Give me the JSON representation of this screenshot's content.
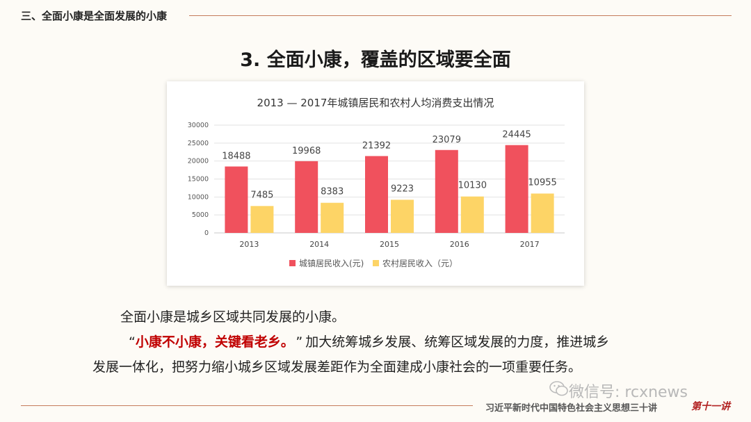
{
  "header": {
    "section_title": "三、全面小康是全面发展的小康"
  },
  "slide": {
    "title": "3. 全面小康，覆盖的区域要全面"
  },
  "chart_data": {
    "type": "bar",
    "title": "2013 — 2017年城镇居民和农村人均消费支出情况",
    "categories": [
      "2013",
      "2014",
      "2015",
      "2016",
      "2017"
    ],
    "series": [
      {
        "name": "城镇居民收入(元)",
        "values": [
          18488,
          19968,
          21392,
          23079,
          24445
        ],
        "color": "#f0515d"
      },
      {
        "name": "农村居民收入（元）",
        "values": [
          7485,
          8383,
          9223,
          10130,
          10955
        ],
        "color": "#fdd466"
      }
    ],
    "ylim": [
      0,
      30000
    ],
    "yticks": [
      0,
      5000,
      10000,
      15000,
      20000,
      25000,
      30000
    ],
    "grid": true,
    "legend_position": "bottom"
  },
  "body": {
    "line1": "全面小康是城乡区域共同发展的小康。",
    "quote_open": "“",
    "quote_emphasis": "小康不小康，关键看老乡。",
    "quote_close": "”",
    "line2_rest": "加大统筹城乡发展、统筹区域发展的力度，推进城乡",
    "line3": "发展一体化，把努力缩小城乡区域发展差距作为全面建成小康社会的一项重要任务。"
  },
  "watermark": {
    "text": "微信号: rcxnews",
    "icon": "wechat-icon"
  },
  "footer": {
    "series_title": "习近平新时代中国特色社会主义思想三十讲",
    "lecture_badge": "第十一讲"
  },
  "colors": {
    "accent_rule": "#c47a5a",
    "emphasis": "#c00000"
  }
}
